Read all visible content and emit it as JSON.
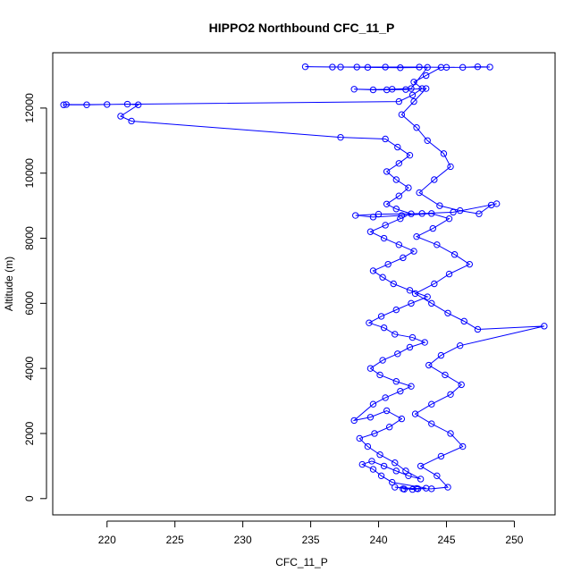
{
  "chart_data": {
    "type": "line",
    "title": "HIPPO2 Northbound CFC_11_P",
    "xlabel": "CFC_11_P",
    "ylabel": "Altitude (m)",
    "xlim": [
      216.0,
      253.0
    ],
    "ylim": [
      -500,
      13700
    ],
    "x_ticks": [
      220,
      225,
      230,
      235,
      240,
      245,
      250
    ],
    "y_ticks": [
      0,
      2000,
      4000,
      6000,
      8000,
      10000,
      12000
    ],
    "grid": false,
    "legend": "none",
    "marker": "open-circle",
    "series": [
      {
        "color": "#0000ff",
        "points": [
          [
            241.8,
            300
          ],
          [
            242.9,
            300
          ],
          [
            241.2,
            350
          ],
          [
            242.5,
            280
          ],
          [
            243.5,
            320
          ],
          [
            241.0,
            500
          ],
          [
            240.2,
            700
          ],
          [
            239.6,
            900
          ],
          [
            238.8,
            1050
          ],
          [
            239.5,
            1150
          ],
          [
            240.4,
            1000
          ],
          [
            241.3,
            850
          ],
          [
            242.2,
            700
          ],
          [
            243.1,
            600
          ],
          [
            242.0,
            850
          ],
          [
            241.2,
            1100
          ],
          [
            240.1,
            1350
          ],
          [
            239.2,
            1600
          ],
          [
            238.6,
            1850
          ],
          [
            239.7,
            2000
          ],
          [
            240.8,
            2200
          ],
          [
            241.7,
            2450
          ],
          [
            240.6,
            2700
          ],
          [
            239.4,
            2500
          ],
          [
            238.2,
            2400
          ],
          [
            239.6,
            2900
          ],
          [
            240.5,
            3100
          ],
          [
            241.6,
            3300
          ],
          [
            242.4,
            3450
          ],
          [
            241.3,
            3600
          ],
          [
            240.1,
            3800
          ],
          [
            239.4,
            4000
          ],
          [
            240.3,
            4250
          ],
          [
            241.4,
            4450
          ],
          [
            242.3,
            4650
          ],
          [
            243.4,
            4800
          ],
          [
            242.5,
            4950
          ],
          [
            241.2,
            5050
          ],
          [
            240.4,
            5250
          ],
          [
            239.3,
            5400
          ],
          [
            240.2,
            5600
          ],
          [
            241.3,
            5800
          ],
          [
            242.4,
            6000
          ],
          [
            243.6,
            6200
          ],
          [
            242.3,
            6400
          ],
          [
            241.1,
            6600
          ],
          [
            240.3,
            6800
          ],
          [
            239.6,
            7000
          ],
          [
            240.7,
            7200
          ],
          [
            241.8,
            7400
          ],
          [
            242.6,
            7600
          ],
          [
            241.5,
            7800
          ],
          [
            240.4,
            8000
          ],
          [
            239.4,
            8200
          ],
          [
            240.5,
            8400
          ],
          [
            241.6,
            8600
          ],
          [
            242.4,
            8750
          ],
          [
            241.3,
            8900
          ],
          [
            240.6,
            9050
          ],
          [
            241.5,
            9300
          ],
          [
            242.2,
            9550
          ],
          [
            241.3,
            9800
          ],
          [
            240.6,
            10050
          ],
          [
            241.5,
            10300
          ],
          [
            242.3,
            10550
          ],
          [
            241.4,
            10800
          ],
          [
            240.5,
            11050
          ],
          [
            237.2,
            11100
          ],
          [
            221.8,
            11600
          ],
          [
            221.0,
            11750
          ],
          [
            222.3,
            12100
          ],
          [
            221.5,
            12120
          ],
          [
            220.0,
            12110
          ],
          [
            218.5,
            12100
          ],
          [
            217.0,
            12110
          ],
          [
            216.8,
            12100
          ],
          [
            241.5,
            12200
          ],
          [
            242.5,
            12400
          ],
          [
            243.2,
            12600
          ],
          [
            242.6,
            12800
          ],
          [
            243.5,
            13000
          ],
          [
            244.6,
            13250
          ],
          [
            246.2,
            13250
          ],
          [
            247.3,
            13270
          ],
          [
            248.2,
            13260
          ],
          [
            245.0,
            13250
          ],
          [
            243.0,
            13260
          ],
          [
            240.5,
            13260
          ],
          [
            238.4,
            13260
          ],
          [
            236.6,
            13260
          ],
          [
            234.6,
            13270
          ],
          [
            237.2,
            13260
          ],
          [
            239.2,
            13250
          ],
          [
            241.6,
            13240
          ],
          [
            243.6,
            13250
          ],
          [
            242.4,
            12600
          ],
          [
            241.0,
            12580
          ],
          [
            239.6,
            12560
          ],
          [
            238.2,
            12580
          ],
          [
            240.6,
            12560
          ],
          [
            242.0,
            12570
          ],
          [
            243.5,
            12600
          ],
          [
            242.6,
            12200
          ],
          [
            241.7,
            11800
          ],
          [
            242.8,
            11400
          ],
          [
            243.6,
            11000
          ],
          [
            244.8,
            10600
          ],
          [
            245.3,
            10200
          ],
          [
            244.1,
            9800
          ],
          [
            243.0,
            9400
          ],
          [
            244.5,
            9000
          ],
          [
            246.0,
            8850
          ],
          [
            247.4,
            8750
          ],
          [
            248.3,
            9020
          ],
          [
            248.7,
            9060
          ],
          [
            245.5,
            8800
          ],
          [
            243.2,
            8760
          ],
          [
            240.0,
            8740
          ],
          [
            238.3,
            8700
          ],
          [
            239.6,
            8650
          ],
          [
            241.7,
            8700
          ],
          [
            243.9,
            8760
          ],
          [
            245.2,
            8600
          ],
          [
            244.0,
            8300
          ],
          [
            242.8,
            8050
          ],
          [
            244.3,
            7800
          ],
          [
            245.6,
            7500
          ],
          [
            246.7,
            7200
          ],
          [
            245.2,
            6900
          ],
          [
            244.1,
            6600
          ],
          [
            242.7,
            6300
          ],
          [
            243.9,
            6000
          ],
          [
            245.1,
            5700
          ],
          [
            246.3,
            5450
          ],
          [
            247.3,
            5200
          ],
          [
            252.2,
            5300
          ],
          [
            246.0,
            4700
          ],
          [
            244.6,
            4400
          ],
          [
            243.7,
            4100
          ],
          [
            244.9,
            3800
          ],
          [
            246.1,
            3500
          ],
          [
            245.3,
            3200
          ],
          [
            243.9,
            2900
          ],
          [
            242.7,
            2600
          ],
          [
            243.9,
            2300
          ],
          [
            245.3,
            2000
          ],
          [
            246.2,
            1600
          ],
          [
            244.6,
            1300
          ],
          [
            243.1,
            1000
          ],
          [
            244.3,
            700
          ],
          [
            245.1,
            350
          ],
          [
            243.9,
            300
          ],
          [
            242.8,
            310
          ],
          [
            241.9,
            290
          ]
        ]
      }
    ]
  }
}
